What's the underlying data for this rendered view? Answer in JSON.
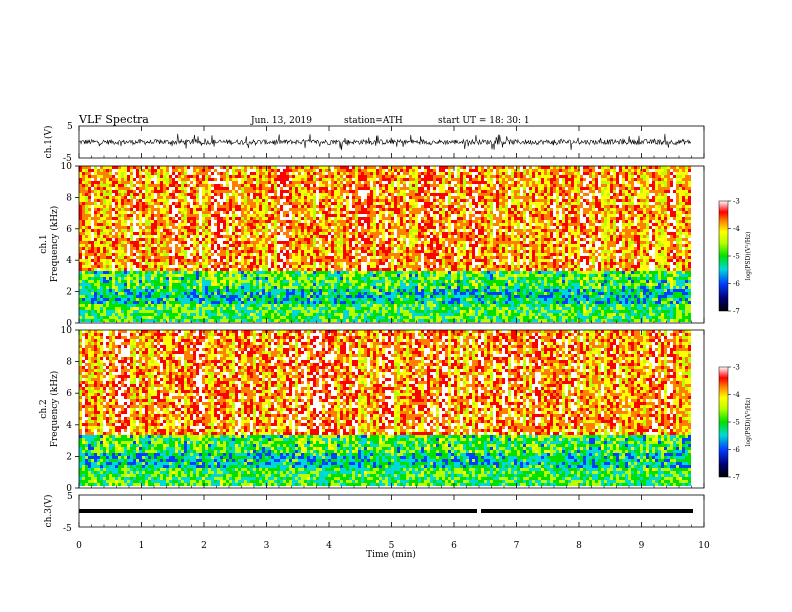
{
  "header": {
    "title": "VLF  Spectra",
    "date": "Jun. 13, 2019",
    "station": "station=ATH",
    "start_ut": "start  UT  =    18: 30: 1"
  },
  "chart_data": [
    {
      "type": "line",
      "panel": "ch1-waveform",
      "ylabel": "ch.1(V)",
      "ylim": [
        -5,
        5
      ],
      "yticks": [
        "5",
        "-5"
      ],
      "xlim": [
        0,
        10
      ],
      "series": [
        {
          "values_description_none": true,
          "mean": 0,
          "range": [
            -2.5,
            2.5
          ]
        }
      ]
    },
    {
      "type": "heatmap",
      "panel": "ch1-spectrogram",
      "ylabel": "ch.1\nFrequency  (kHz)",
      "ylabel_lines": [
        "ch.1",
        "Frequency  (kHz)"
      ],
      "ylim": [
        0,
        10
      ],
      "yticks": [
        "0",
        "2",
        "4",
        "6",
        "8",
        "10"
      ],
      "xlim": [
        0,
        10
      ],
      "data_end_min": 9.8,
      "colorbar": {
        "label": "log(PSD)(V²/Hz)",
        "range": [
          -7,
          -3
        ],
        "ticks": [
          "-3",
          "-4",
          "-5",
          "-6",
          "-7"
        ]
      }
    },
    {
      "type": "heatmap",
      "panel": "ch2-spectrogram",
      "ylabel": "ch.2\nFrequency  (kHz)",
      "ylabel_lines": [
        "ch.2",
        "Frequency  (kHz)"
      ],
      "ylim": [
        0,
        10
      ],
      "yticks": [
        "0",
        "2",
        "4",
        "6",
        "8",
        "10"
      ],
      "xlim": [
        0,
        10
      ],
      "data_end_min": 9.8,
      "colorbar": {
        "label": "log(PSD)(V²/Hz)",
        "range": [
          -7,
          -3
        ],
        "ticks": [
          "-3",
          "-4",
          "-5",
          "-6",
          "-7"
        ]
      }
    },
    {
      "type": "line",
      "panel": "ch3-waveform",
      "ylabel": "ch.3(V)",
      "ylim": [
        -5,
        5
      ],
      "yticks": [
        "5",
        "-5"
      ],
      "xlim": [
        0,
        10
      ],
      "series": [
        {
          "constant_value": -0.5,
          "gap_at_min": 6.4
        }
      ]
    }
  ],
  "xaxis": {
    "label": "Time  (min)",
    "ticks": [
      "0",
      "1",
      "2",
      "3",
      "4",
      "5",
      "6",
      "7",
      "8",
      "9",
      "10"
    ]
  }
}
